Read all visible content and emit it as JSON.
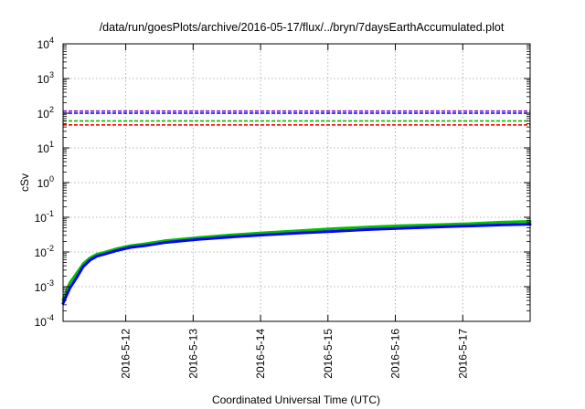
{
  "chart_data": {
    "type": "line",
    "title": "/data/run/goesPlots/archive/2016-05-17/flux/../bryn/7daysEarthAccumulated.plot",
    "xlabel": "Coordinated Universal Time (UTC)",
    "ylabel": "cSv",
    "yscale": "log",
    "ylim": [
      0.0001,
      10000
    ],
    "xlim": [
      0,
      6.93
    ],
    "grid": true,
    "x_ticks": [
      {
        "x": 0.93,
        "label": "2016-5-12"
      },
      {
        "x": 1.93,
        "label": "2016-5-13"
      },
      {
        "x": 2.93,
        "label": "2016-5-14"
      },
      {
        "x": 3.93,
        "label": "2016-5-15"
      },
      {
        "x": 4.93,
        "label": "2016-5-16"
      },
      {
        "x": 5.93,
        "label": "2016-5-17"
      }
    ],
    "y_ticks": [
      {
        "y": 0.0001,
        "base": "10",
        "exp": "-4"
      },
      {
        "y": 0.001,
        "base": "10",
        "exp": "-3"
      },
      {
        "y": 0.01,
        "base": "10",
        "exp": "-2"
      },
      {
        "y": 0.1,
        "base": "10",
        "exp": "-1"
      },
      {
        "y": 1,
        "base": "10",
        "exp": "0"
      },
      {
        "y": 10,
        "base": "10",
        "exp": "1"
      },
      {
        "y": 100,
        "base": "10",
        "exp": "2"
      },
      {
        "y": 1000,
        "base": "10",
        "exp": "3"
      },
      {
        "y": 10000,
        "base": "10",
        "exp": "4"
      }
    ],
    "thresholds": [
      {
        "value": 115,
        "color": "#9400d3"
      },
      {
        "value": 100,
        "color": "#0000ff"
      },
      {
        "value": 60,
        "color": "#00c000"
      },
      {
        "value": 46,
        "color": "#ff0000"
      }
    ],
    "series": [
      {
        "color": "#00c000",
        "x": [
          0,
          0.1,
          0.2,
          0.3,
          0.4,
          0.5,
          0.6,
          0.8,
          1.0,
          1.2,
          1.5,
          2.0,
          2.5,
          3.0,
          3.5,
          4.0,
          4.5,
          5.0,
          5.5,
          6.0,
          6.5,
          6.93
        ],
        "y": [
          0.00042,
          0.0013,
          0.0024,
          0.0046,
          0.0068,
          0.0086,
          0.0096,
          0.0125,
          0.0152,
          0.017,
          0.021,
          0.026,
          0.031,
          0.036,
          0.041,
          0.047,
          0.052,
          0.057,
          0.061,
          0.065,
          0.072,
          0.076
        ]
      },
      {
        "color": "#0000ff",
        "x": [
          0,
          0.1,
          0.2,
          0.3,
          0.4,
          0.5,
          0.6,
          0.8,
          1.0,
          1.2,
          1.5,
          2.0,
          2.5,
          3.0,
          3.5,
          4.0,
          4.5,
          5.0,
          5.5,
          6.0,
          6.5,
          6.93
        ],
        "y": [
          0.00033,
          0.0009,
          0.0018,
          0.0038,
          0.0058,
          0.0075,
          0.0085,
          0.011,
          0.0135,
          0.015,
          0.0185,
          0.023,
          0.027,
          0.031,
          0.035,
          0.039,
          0.044,
          0.048,
          0.052,
          0.056,
          0.06,
          0.063
        ]
      }
    ]
  }
}
